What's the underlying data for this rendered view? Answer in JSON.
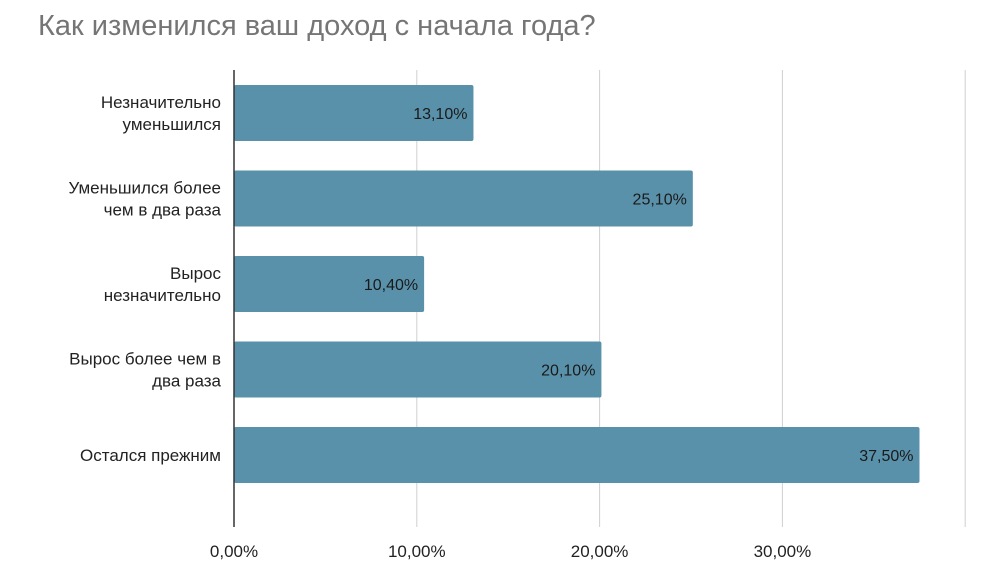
{
  "chart_data": {
    "type": "bar",
    "orientation": "horizontal",
    "title": "Как изменился ваш доход с начала года?",
    "xlabel": "",
    "ylabel": "",
    "categories": [
      [
        "Незначительно",
        "уменьшился"
      ],
      [
        "Уменьшился более",
        "чем в два раза"
      ],
      [
        "Вырос",
        "незначительно"
      ],
      [
        "Вырос более чем в",
        "два раза"
      ],
      [
        "Остался прежним"
      ]
    ],
    "values": [
      13.1,
      25.1,
      10.4,
      20.1,
      37.5
    ],
    "data_labels": [
      "13,10%",
      "25,10%",
      "10,40%",
      "20,10%",
      "37,50%"
    ],
    "xlim": [
      0,
      40
    ],
    "x_ticks": [
      0,
      10,
      20,
      30
    ],
    "x_tick_labels": [
      "0,00%",
      "10,00%",
      "20,00%",
      "30,00%"
    ],
    "grid": true,
    "legend": "none",
    "colors": {
      "bar": "#5a91aa",
      "grid": "#cfcfcf",
      "axis": "#333333",
      "title": "#757575"
    }
  }
}
